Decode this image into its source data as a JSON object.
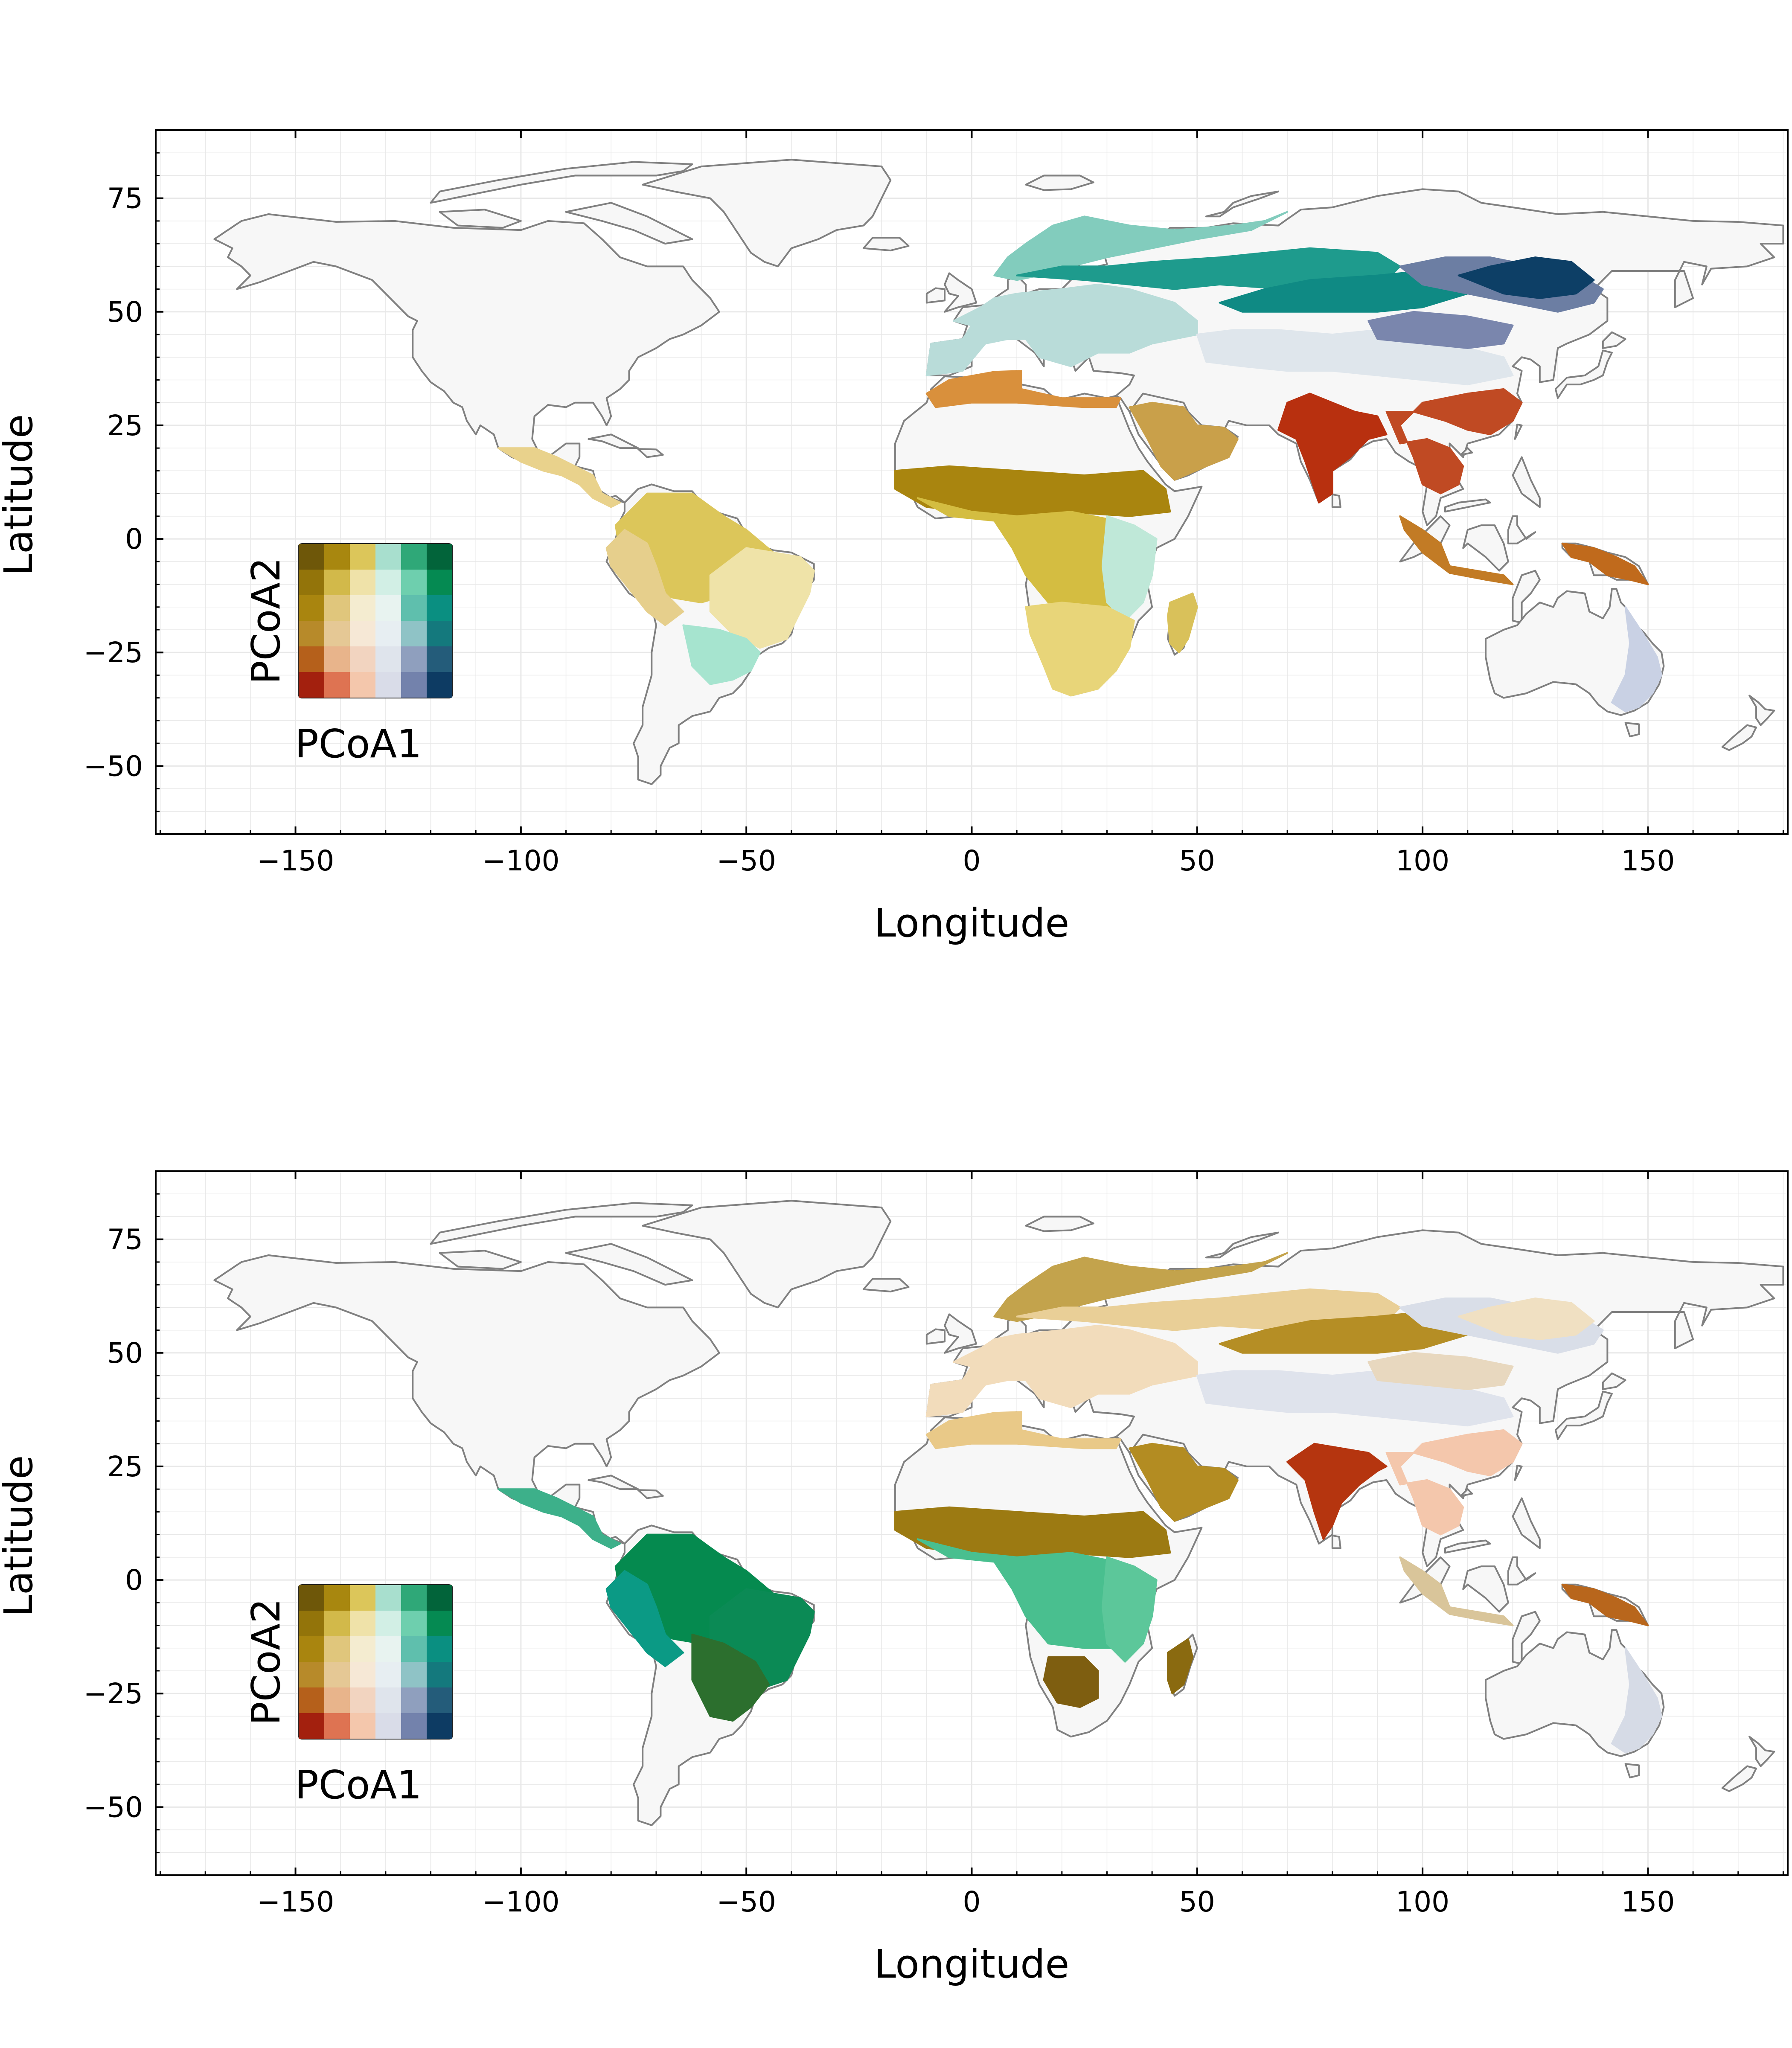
{
  "maps": [
    {
      "id": "top",
      "xlabel": "Longitude",
      "ylabel": "Latitude",
      "x_ticks": [
        "−150",
        "−100",
        "−50",
        "0",
        "50",
        "100",
        "150"
      ],
      "y_ticks": [
        "75",
        "50",
        "25",
        "0",
        "−25",
        "−50"
      ],
      "legend": {
        "xlabel": "PCoA1",
        "ylabel": "PCoA2"
      },
      "regions": [
        {
          "name": "central-america",
          "color": "#e9d28c"
        },
        {
          "name": "amazon",
          "color": "#dcc65a"
        },
        {
          "name": "brazil-east",
          "color": "#efe3a8"
        },
        {
          "name": "andes-west",
          "color": "#e6cf8c"
        },
        {
          "name": "south-brazil",
          "color": "#a6e4cf"
        },
        {
          "name": "sahel",
          "color": "#a9850f"
        },
        {
          "name": "central-africa",
          "color": "#d4bd41"
        },
        {
          "name": "east-africa",
          "color": "#bfe8d8"
        },
        {
          "name": "southern-africa",
          "color": "#e8d579"
        },
        {
          "name": "madagascar",
          "color": "#d9c15a"
        },
        {
          "name": "north-africa-coast",
          "color": "#d9903c"
        },
        {
          "name": "arabia",
          "color": "#c9a04a"
        },
        {
          "name": "europe",
          "color": "#b9dcd9"
        },
        {
          "name": "scandinavia",
          "color": "#82ccbd"
        },
        {
          "name": "boreal-west",
          "color": "#1e9b8d"
        },
        {
          "name": "siberia",
          "color": "#0f8a84"
        },
        {
          "name": "east-siberia",
          "color": "#6c7ea3"
        },
        {
          "name": "far-east",
          "color": "#0d3f66"
        },
        {
          "name": "central-asia",
          "color": "#dfe6ec"
        },
        {
          "name": "mongolia",
          "color": "#7a86ad"
        },
        {
          "name": "india",
          "color": "#b8300f"
        },
        {
          "name": "southeast-asia",
          "color": "#c04a23"
        },
        {
          "name": "indonesia",
          "color": "#c27b25"
        },
        {
          "name": "new-guinea",
          "color": "#c06a1c"
        },
        {
          "name": "australia-east",
          "color": "#c9d1e4"
        }
      ]
    },
    {
      "id": "bottom",
      "xlabel": "Longitude",
      "ylabel": "Latitude",
      "x_ticks": [
        "−150",
        "−100",
        "−50",
        "0",
        "50",
        "100",
        "150"
      ],
      "y_ticks": [
        "75",
        "50",
        "25",
        "0",
        "−25",
        "−50"
      ],
      "legend": {
        "xlabel": "PCoA1",
        "ylabel": "PCoA2"
      },
      "regions": [
        {
          "name": "central-america",
          "color": "#3db08a"
        },
        {
          "name": "amazon",
          "color": "#058a4f"
        },
        {
          "name": "brazil-east",
          "color": "#0b8a55"
        },
        {
          "name": "andes-west",
          "color": "#0b9a85"
        },
        {
          "name": "south-brazil",
          "color": "#2c6f2e"
        },
        {
          "name": "sahel",
          "color": "#9c7a12"
        },
        {
          "name": "central-africa",
          "color": "#49bf8f"
        },
        {
          "name": "east-africa",
          "color": "#5cc79a"
        },
        {
          "name": "southern-africa",
          "color": "#7e5e10"
        },
        {
          "name": "madagascar",
          "color": "#8a6a10"
        },
        {
          "name": "north-africa-coast",
          "color": "#e9c988"
        },
        {
          "name": "arabia",
          "color": "#b38c22"
        },
        {
          "name": "europe",
          "color": "#f2dcbb"
        },
        {
          "name": "scandinavia",
          "color": "#c3a34c"
        },
        {
          "name": "boreal-west",
          "color": "#e9cf97"
        },
        {
          "name": "siberia",
          "color": "#b58e25"
        },
        {
          "name": "east-siberia",
          "color": "#d9dee8"
        },
        {
          "name": "far-east",
          "color": "#f0e0c2"
        },
        {
          "name": "central-asia",
          "color": "#dfe3ec"
        },
        {
          "name": "mongolia",
          "color": "#e8d8bf"
        },
        {
          "name": "india",
          "color": "#b5350f"
        },
        {
          "name": "southeast-asia",
          "color": "#f4c7ac"
        },
        {
          "name": "indonesia",
          "color": "#d9c59a"
        },
        {
          "name": "new-guinea",
          "color": "#b8661c"
        },
        {
          "name": "australia-east",
          "color": "#d6dbe6"
        }
      ]
    }
  ],
  "legend_colors": [
    [
      "#6e5709",
      "#a8870f",
      "#dcc65a",
      "#a8dfce",
      "#2fa878",
      "#02643a"
    ],
    [
      "#93740a",
      "#d2b94a",
      "#efe2a9",
      "#d2efe5",
      "#6ecfae",
      "#058a52"
    ],
    [
      "#a9850f",
      "#e0c67c",
      "#f4ecd0",
      "#e8f3f0",
      "#5fbfad",
      "#0a8f81"
    ],
    [
      "#b78a2a",
      "#e5c895",
      "#f6e8d6",
      "#e7eef2",
      "#8fc3c6",
      "#14797d"
    ],
    [
      "#b5601b",
      "#e8b48b",
      "#f2d4c0",
      "#dfe4ec",
      "#8f9fbe",
      "#245c7a"
    ],
    [
      "#a3200e",
      "#de7352",
      "#f4c7ac",
      "#d9dce8",
      "#7382ac",
      "#0d3b63"
    ]
  ],
  "colors": {
    "land_fill": "#f7f7f7",
    "coastline": "#808080",
    "grid": "#e8e8e8",
    "axis": "#000000"
  }
}
